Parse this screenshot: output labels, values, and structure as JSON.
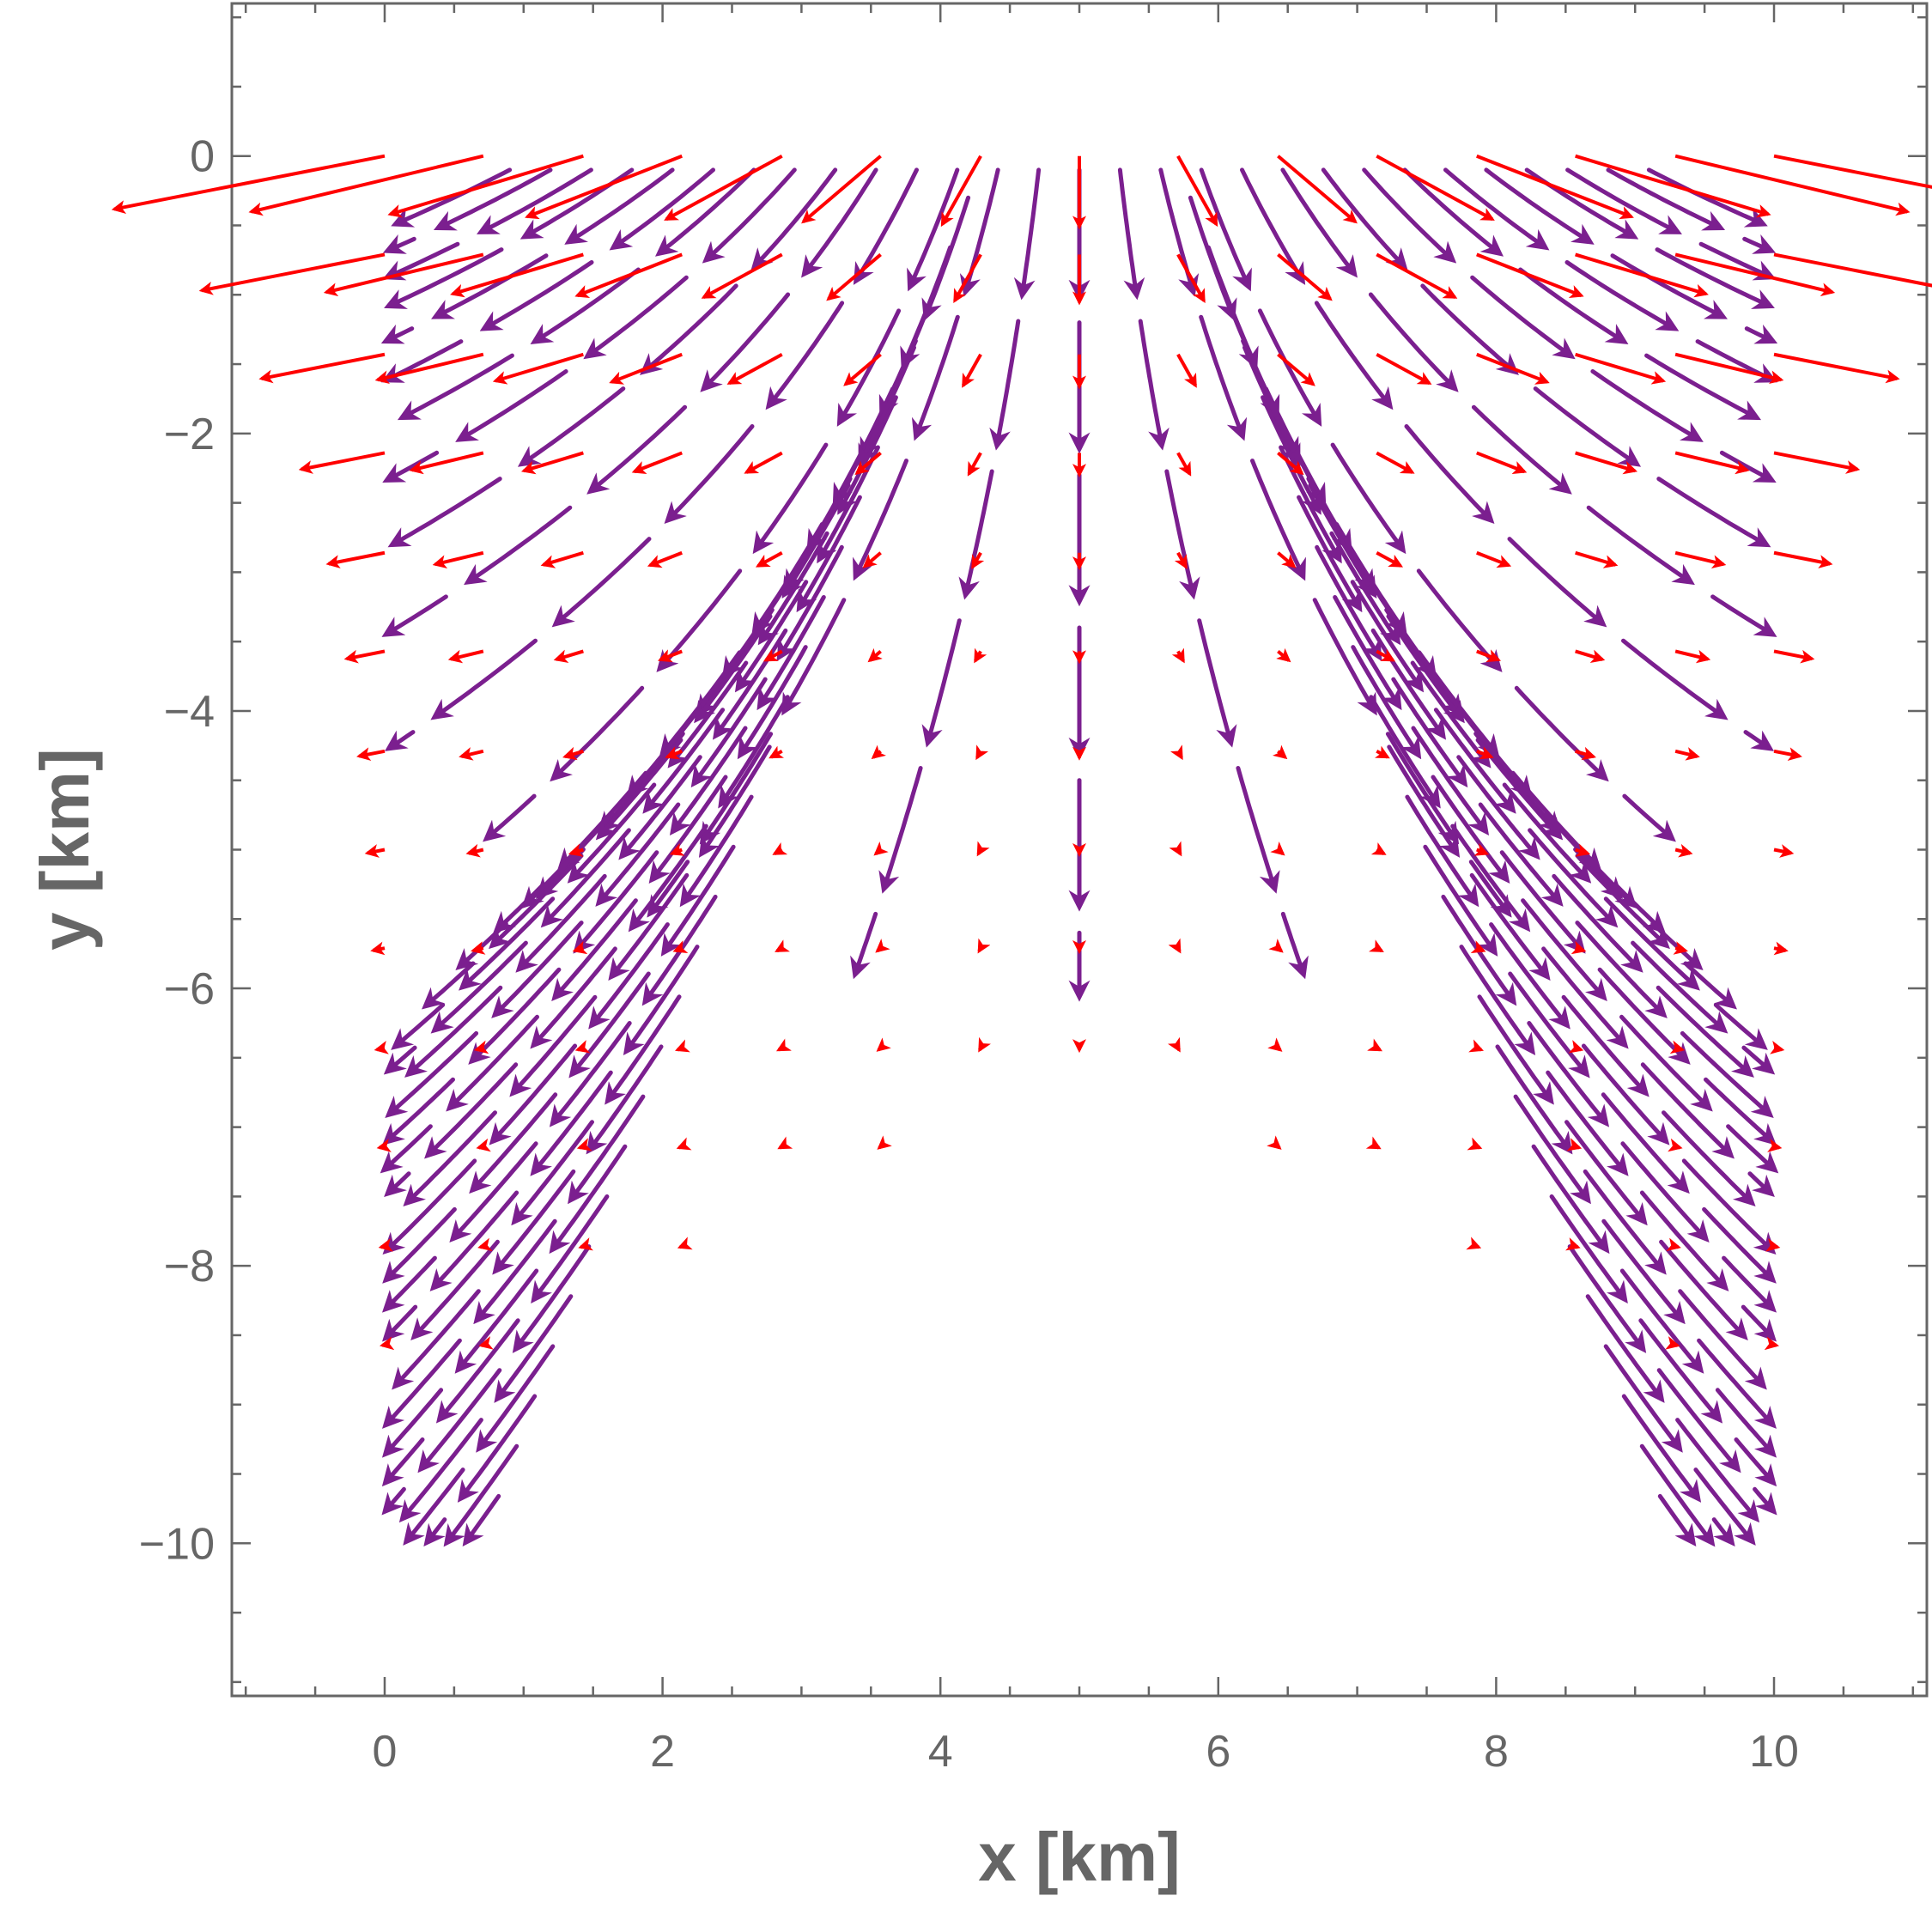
{
  "chart_data": {
    "type": "vector-field",
    "xlabel": "x [km]",
    "ylabel": "y [km]",
    "xlim": [
      -1.1,
      11.1
    ],
    "ylim": [
      -11.1,
      1.1
    ],
    "x_ticks": [
      0,
      2,
      4,
      6,
      8,
      10
    ],
    "x_tick_labels": [
      "0",
      "2",
      "4",
      "6",
      "8",
      "10"
    ],
    "y_ticks": [
      0,
      -2,
      -4,
      -6,
      -8,
      -10
    ],
    "y_tick_labels": [
      "0",
      "−2",
      "−4",
      "−6",
      "−8",
      "−10"
    ],
    "grid": false,
    "frame": true,
    "domain": {
      "x": [
        0,
        10
      ],
      "y": [
        -10,
        0
      ]
    },
    "series": [
      {
        "color": "#7b1f8f",
        "style": "stream-lines",
        "description_field": "flow diverging away from x = 5, downward near center, outward near sides"
      },
      {
        "color": "#ff0000",
        "style": "vector-arrows",
        "grid_x": [
          0,
          0.71,
          1.43,
          2.14,
          2.86,
          3.57,
          4.29,
          5,
          5.71,
          6.43,
          7.14,
          7.86,
          8.57,
          9.29,
          10
        ],
        "grid_y": [
          0,
          -0.71,
          -1.43,
          -2.14,
          -2.86,
          -3.57,
          -4.29,
          -5,
          -5.71,
          -6.43,
          -7.14,
          -7.86,
          -8.57,
          -9.29,
          -10
        ]
      }
    ],
    "colors": {
      "frame": "#666666",
      "stream": "#7b1f8f",
      "vector": "#ff0000"
    }
  }
}
